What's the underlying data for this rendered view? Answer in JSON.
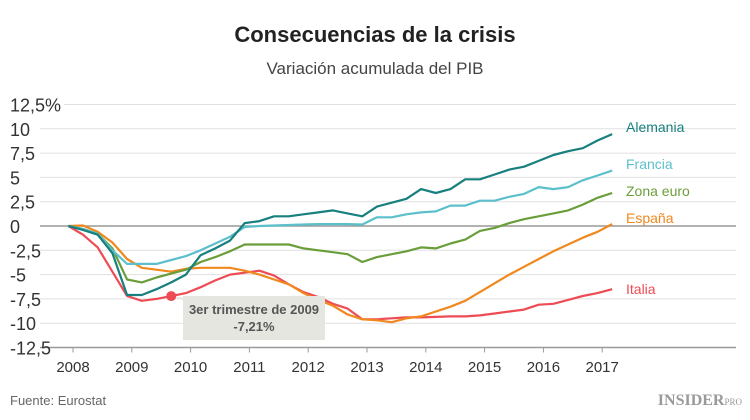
{
  "chart_data": {
    "type": "line",
    "title": "Consecuencias de la crisis",
    "subtitle": "Variación acumulada del PIB",
    "source": "Fuente: Eurostat",
    "logo": "INSIDER PRO",
    "ylim": [
      -12.5,
      12.5
    ],
    "yticks": [
      "12,5%",
      "10",
      "7,5",
      "5",
      "2,5",
      "0",
      "-2,5",
      "-5",
      "-7,5",
      "-10",
      "-12,5"
    ],
    "ytick_values": [
      12.5,
      10,
      7.5,
      5,
      2.5,
      0,
      -2.5,
      -5,
      -7.5,
      -10,
      -12.5
    ],
    "xticks": [
      "2008",
      "2009",
      "2010",
      "2011",
      "2012",
      "2013",
      "2014",
      "2015",
      "2016",
      "2017"
    ],
    "x_start": 2007.92,
    "x_step": 0.25,
    "grid": true,
    "legend_placement": "right, at line ends",
    "series": [
      {
        "name": "Alemania",
        "color": "#17807e",
        "values": [
          0,
          -0.4,
          -0.9,
          -2.8,
          -7.1,
          -7.1,
          -6.5,
          -5.8,
          -5.0,
          -3.0,
          -2.3,
          -1.5,
          0.3,
          0.5,
          1.0,
          1.0,
          1.2,
          1.4,
          1.6,
          1.3,
          1.0,
          2.0,
          2.4,
          2.8,
          3.8,
          3.4,
          3.8,
          4.8,
          4.8,
          5.3,
          5.8,
          6.1,
          6.7,
          7.3,
          7.7,
          8.0,
          8.8,
          9.45
        ]
      },
      {
        "name": "Francia",
        "color": "#5cc0cc",
        "values": [
          0,
          -0.3,
          -0.8,
          -2.5,
          -3.9,
          -3.9,
          -3.9,
          -3.5,
          -3.1,
          -2.5,
          -1.8,
          -1.1,
          -0.1,
          0,
          0.05,
          0.1,
          0.15,
          0.2,
          0.2,
          0.2,
          0.15,
          0.9,
          0.9,
          1.2,
          1.4,
          1.5,
          2.1,
          2.1,
          2.6,
          2.6,
          3.0,
          3.3,
          4.0,
          3.8,
          4.0,
          4.7,
          5.2,
          5.7
        ]
      },
      {
        "name": "Zona euro",
        "color": "#6a9e3a",
        "values": [
          0,
          -0.3,
          -0.8,
          -2.3,
          -5.5,
          -5.8,
          -5.3,
          -4.9,
          -4.5,
          -3.7,
          -3.2,
          -2.6,
          -1.9,
          -1.9,
          -1.9,
          -1.9,
          -2.3,
          -2.5,
          -2.7,
          -2.9,
          -3.7,
          -3.2,
          -2.9,
          -2.6,
          -2.2,
          -2.3,
          -1.8,
          -1.4,
          -0.5,
          -0.2,
          0.3,
          0.7,
          1.0,
          1.3,
          1.6,
          2.2,
          2.9,
          3.4
        ]
      },
      {
        "name": "España",
        "color": "#f0881d",
        "values": [
          0,
          0.05,
          -0.6,
          -1.7,
          -3.4,
          -4.3,
          -4.5,
          -4.7,
          -4.4,
          -4.3,
          -4.3,
          -4.3,
          -4.6,
          -5.0,
          -5.5,
          -6.0,
          -6.9,
          -7.6,
          -8.2,
          -9.1,
          -9.6,
          -9.7,
          -9.9,
          -9.5,
          -9.3,
          -8.8,
          -8.3,
          -7.7,
          -6.8,
          -5.9,
          -5.0,
          -4.2,
          -3.4,
          -2.6,
          -1.9,
          -1.2,
          -0.6,
          0.2
        ]
      },
      {
        "name": "Italia",
        "color": "#ee4c55",
        "values": [
          0,
          -0.9,
          -2.2,
          -4.7,
          -7.2,
          -7.7,
          -7.5,
          -7.21,
          -6.9,
          -6.3,
          -5.6,
          -5.0,
          -4.8,
          -4.6,
          -5.1,
          -6.0,
          -6.8,
          -7.3,
          -8.0,
          -8.5,
          -9.6,
          -9.6,
          -9.5,
          -9.4,
          -9.4,
          -9.35,
          -9.3,
          -9.3,
          -9.2,
          -9.0,
          -8.8,
          -8.6,
          -8.1,
          -8.0,
          -7.6,
          -7.2,
          -6.9,
          -6.5
        ]
      }
    ],
    "annotation": {
      "series": "Italia",
      "index": 7,
      "line1": "3er trimestre de 2009",
      "line2": "-7,21%",
      "box_color": "#e6e6e1"
    }
  }
}
